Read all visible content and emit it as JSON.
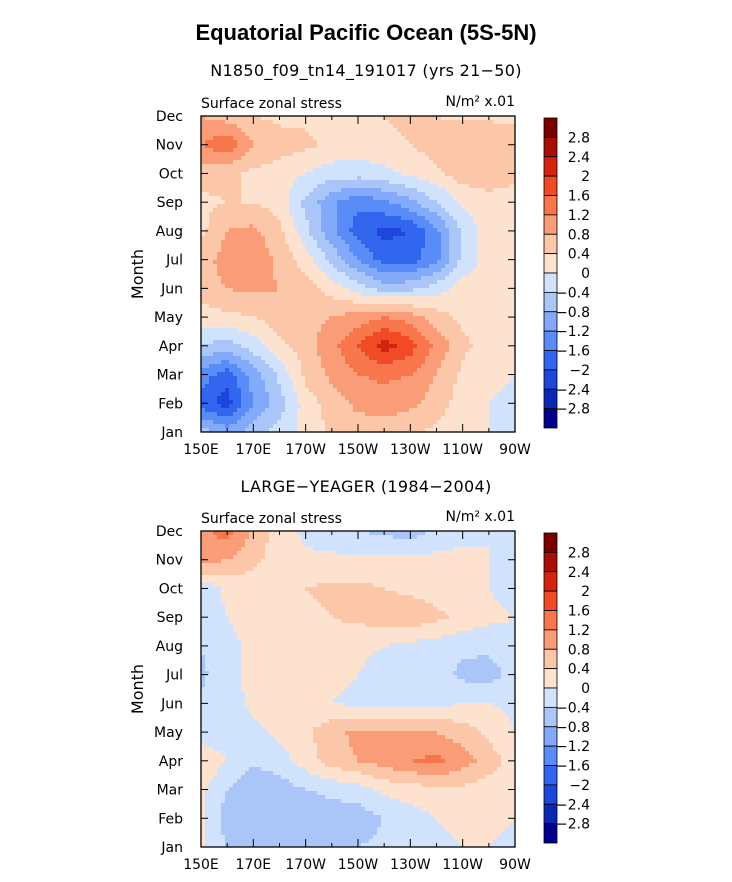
{
  "title": "Equatorial Pacific Ocean (5S-5N)",
  "chart_data": [
    {
      "type": "heatmap",
      "subtitle": "N1850_f09_tn14_191017 (yrs 21−50)",
      "left_label": "Surface zonal stress",
      "right_label": "N/m² x.01",
      "ylabel": "Month",
      "x_ticks": [
        "150E",
        "170E",
        "170W",
        "150W",
        "130W",
        "110W",
        "90W"
      ],
      "y_ticks": [
        "Jan",
        "Feb",
        "Mar",
        "Apr",
        "May",
        "Jun",
        "Jul",
        "Aug",
        "Sep",
        "Oct",
        "Nov",
        "Dec"
      ],
      "xlim": [
        150,
        270
      ],
      "ylim": [
        1,
        12
      ],
      "x": [
        150,
        160,
        170,
        180,
        190,
        200,
        210,
        220,
        230,
        240,
        250,
        260,
        270
      ],
      "z": [
        [
          -0.6,
          -1.0,
          -0.6,
          -0.2,
          0.1,
          0.5,
          0.6,
          0.6,
          0.5,
          0.3,
          0.2,
          0.0,
          -0.1
        ],
        [
          -1.8,
          -2.2,
          -1.2,
          -0.6,
          0.2,
          0.6,
          0.9,
          1.0,
          0.9,
          0.6,
          0.2,
          0.0,
          -0.1
        ],
        [
          -1.4,
          -1.8,
          -1.0,
          -0.3,
          0.5,
          0.9,
          1.2,
          1.3,
          1.2,
          0.8,
          0.3,
          0.1,
          0.0
        ],
        [
          -0.4,
          -0.6,
          -0.2,
          0.3,
          0.6,
          1.1,
          1.6,
          2.2,
          1.8,
          1.1,
          0.5,
          0.2,
          0.1
        ],
        [
          0.2,
          0.3,
          0.4,
          0.6,
          0.7,
          0.8,
          1.0,
          1.2,
          1.0,
          0.6,
          0.3,
          0.1,
          0.1
        ],
        [
          0.6,
          0.8,
          0.9,
          0.8,
          0.6,
          0.2,
          -0.2,
          -0.6,
          -0.5,
          -0.2,
          0.2,
          0.2,
          0.1
        ],
        [
          0.6,
          1.0,
          1.1,
          0.7,
          0.2,
          -0.5,
          -1.2,
          -1.8,
          -1.8,
          -1.3,
          -0.3,
          0.2,
          0.2
        ],
        [
          0.3,
          0.8,
          0.9,
          0.5,
          -0.3,
          -1.1,
          -1.8,
          -2.1,
          -2.0,
          -1.3,
          -0.3,
          0.2,
          0.2
        ],
        [
          0.3,
          0.4,
          0.4,
          0.2,
          -0.5,
          -1.1,
          -1.5,
          -1.3,
          -0.9,
          -0.4,
          0.1,
          0.2,
          0.2
        ],
        [
          0.6,
          0.5,
          0.3,
          0.2,
          0.0,
          -0.2,
          -0.2,
          -0.1,
          0.1,
          0.3,
          0.6,
          0.7,
          0.5
        ],
        [
          1.2,
          1.5,
          0.8,
          0.6,
          0.5,
          0.3,
          0.2,
          0.3,
          0.4,
          0.6,
          0.8,
          0.8,
          0.6
        ],
        [
          0.8,
          0.6,
          0.4,
          0.3,
          0.3,
          0.3,
          0.3,
          0.4,
          0.5,
          0.4,
          0.3,
          0.3,
          0.3
        ]
      ]
    },
    {
      "type": "heatmap",
      "subtitle": "LARGE−YEAGER (1984−2004)",
      "left_label": "Surface zonal stress",
      "right_label": "N/m² x.01",
      "ylabel": "Month",
      "x_ticks": [
        "150E",
        "170E",
        "170W",
        "150W",
        "130W",
        "110W",
        "90W"
      ],
      "y_ticks": [
        "Jan",
        "Feb",
        "Mar",
        "Apr",
        "May",
        "Jun",
        "Jul",
        "Aug",
        "Sep",
        "Oct",
        "Nov",
        "Dec"
      ],
      "xlim": [
        150,
        270
      ],
      "ylim": [
        1,
        12
      ],
      "x": [
        150,
        160,
        170,
        180,
        190,
        200,
        210,
        220,
        230,
        240,
        250,
        260,
        270
      ],
      "z": [
        [
          0.1,
          -0.4,
          -0.5,
          -0.8,
          -0.6,
          -0.4,
          -0.4,
          -0.3,
          -0.2,
          -0.1,
          0.0,
          0.0,
          -0.1
        ],
        [
          0.1,
          -0.6,
          -0.8,
          -0.8,
          -0.7,
          -0.6,
          -0.6,
          -0.4,
          -0.2,
          0.0,
          0.1,
          0.1,
          0.0
        ],
        [
          0.1,
          -0.4,
          -0.8,
          -0.6,
          -0.4,
          -0.3,
          -0.2,
          0.1,
          0.2,
          0.3,
          0.3,
          0.2,
          0.1
        ],
        [
          0.3,
          0.0,
          -0.3,
          -0.2,
          0.2,
          0.6,
          0.8,
          1.0,
          1.2,
          1.3,
          1.0,
          0.6,
          0.2
        ],
        [
          -0.2,
          -0.2,
          -0.1,
          0.1,
          0.3,
          0.7,
          0.9,
          0.9,
          0.9,
          0.8,
          0.6,
          0.3,
          0.0
        ],
        [
          -0.3,
          -0.2,
          0.1,
          0.2,
          0.1,
          0.0,
          -0.1,
          -0.1,
          -0.2,
          -0.1,
          0.0,
          0.0,
          -0.1
        ],
        [
          -0.5,
          -0.1,
          0.1,
          0.2,
          0.2,
          0.1,
          0.0,
          -0.2,
          -0.3,
          -0.2,
          -0.5,
          -0.6,
          -0.2
        ],
        [
          -0.4,
          -0.1,
          0.1,
          0.2,
          0.2,
          0.2,
          0.1,
          0.0,
          -0.1,
          -0.2,
          -0.3,
          -0.3,
          -0.1
        ],
        [
          -0.2,
          0.0,
          0.1,
          0.2,
          0.3,
          0.4,
          0.5,
          0.6,
          0.7,
          0.5,
          0.3,
          0.1,
          0.0
        ],
        [
          -0.3,
          0.1,
          0.2,
          0.3,
          0.4,
          0.5,
          0.5,
          0.4,
          0.3,
          0.2,
          0.1,
          0.0,
          -0.2
        ],
        [
          1.0,
          0.8,
          0.5,
          0.2,
          0.1,
          0.1,
          0.1,
          0.1,
          0.1,
          0.1,
          0.1,
          0.0,
          -0.1
        ],
        [
          1.1,
          1.4,
          0.7,
          0.2,
          -0.1,
          -0.3,
          -0.4,
          -0.5,
          -0.6,
          -0.3,
          -0.1,
          0.0,
          -0.1
        ]
      ]
    }
  ],
  "colorbar": {
    "labels": [
      "2.8",
      "2.4",
      "2",
      "1.6",
      "1.2",
      "0.8",
      "0.4",
      "0",
      "−0.4",
      "−0.8",
      "−1.2",
      "−1.6",
      "−2",
      "−2.4",
      "−2.8"
    ],
    "levels": [
      -2.8,
      -2.4,
      -2.0,
      -1.6,
      -1.2,
      -0.8,
      -0.4,
      0,
      0.4,
      0.8,
      1.2,
      1.6,
      2.0,
      2.4,
      2.8
    ],
    "colors": [
      "#00008a",
      "#0a28b4",
      "#1e46dc",
      "#3266ee",
      "#5a8cf8",
      "#82aaf8",
      "#aac6f8",
      "#d0e2fc",
      "#fde3cf",
      "#fcc6a8",
      "#fb9c78",
      "#f8764c",
      "#f04a26",
      "#d42410",
      "#a80e04",
      "#7a0000"
    ]
  }
}
